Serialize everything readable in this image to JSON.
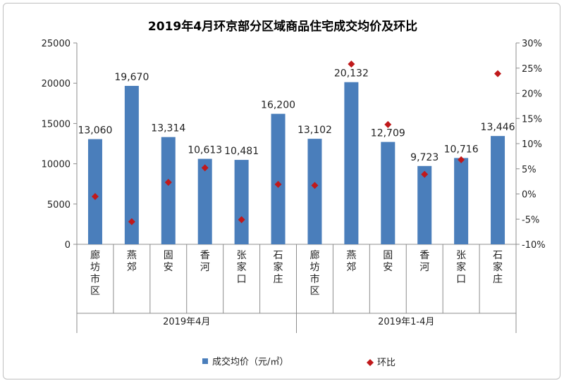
{
  "chart_data": {
    "type": "bar",
    "title": "2019年4月环京部分区域商品住宅成交均价及环比",
    "categories": [
      "廊坊市区",
      "燕郊",
      "固安",
      "香河",
      "张家口",
      "石家庄",
      "廊坊市区",
      "燕郊",
      "固安",
      "香河",
      "张家口",
      "石家庄"
    ],
    "groups": [
      {
        "label": "2019年4月",
        "count": 6
      },
      {
        "label": "2019年1-4月",
        "count": 6
      }
    ],
    "series": [
      {
        "name": "成交均价（元/㎡）",
        "type": "bar",
        "axis": "left",
        "color": "#4a7ebb",
        "values": [
          13060,
          19670,
          13314,
          10613,
          10481,
          16200,
          13102,
          20132,
          12709,
          9723,
          10716,
          13446
        ],
        "labels": [
          "13,060",
          "19,670",
          "13,314",
          "10,613",
          "10,481",
          "16,200",
          "13,102",
          "20,132",
          "12,709",
          "9,723",
          "10,716",
          "13,446"
        ]
      },
      {
        "name": "环比",
        "type": "scatter",
        "axis": "right",
        "color": "#c0191b",
        "values": [
          -0.5,
          -5.5,
          2.3,
          5.2,
          -5.1,
          1.9,
          1.7,
          25.8,
          13.8,
          3.9,
          6.8,
          23.9
        ]
      }
    ],
    "y_left": {
      "min": 0,
      "max": 25000,
      "ticks": [
        "0",
        "5000",
        "10000",
        "15000",
        "20000",
        "25000"
      ]
    },
    "y_right": {
      "min": -10,
      "max": 30,
      "ticks": [
        "-10%",
        "-5%",
        "0%",
        "5%",
        "10%",
        "15%",
        "20%",
        "25%",
        "30%"
      ]
    },
    "legend_position": "bottom",
    "grid": false
  }
}
